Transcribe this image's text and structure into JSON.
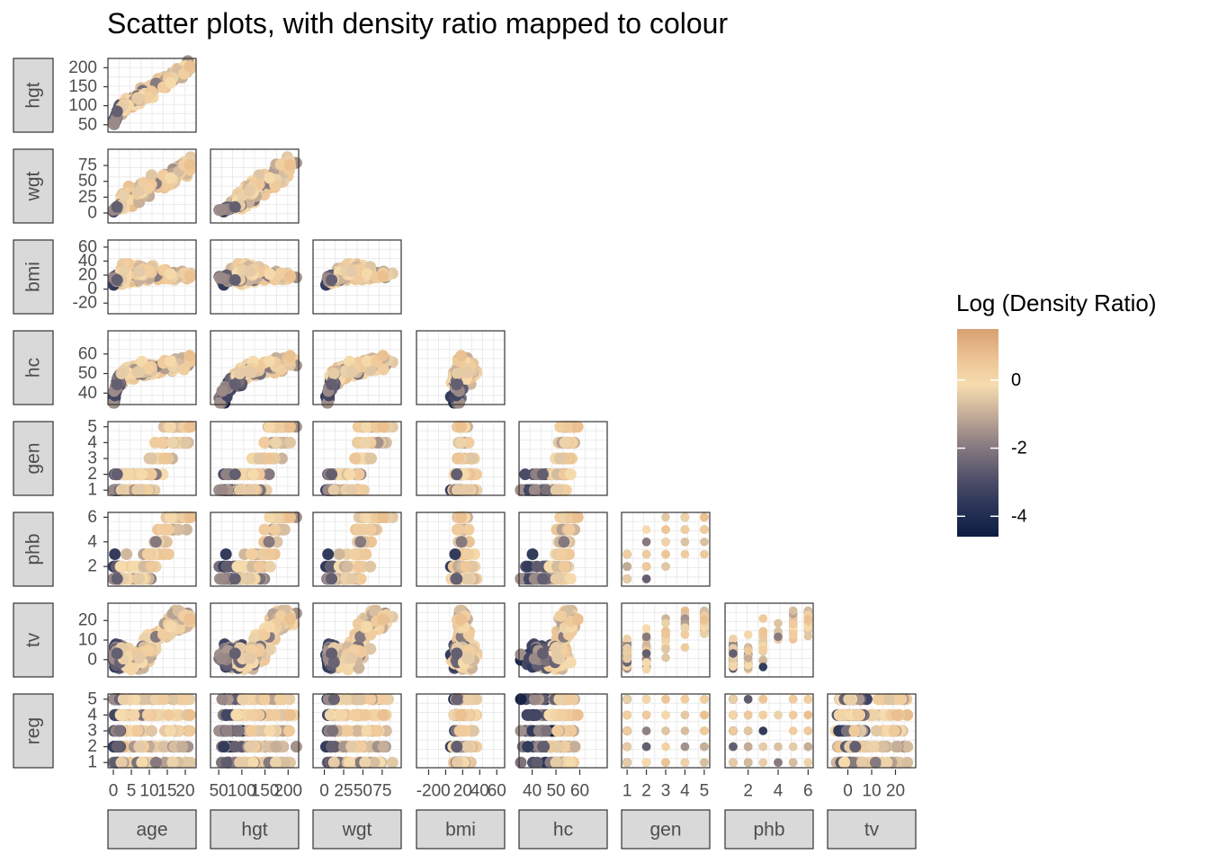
{
  "title": "Scatter plots, with density ratio mapped to colour",
  "legend": {
    "title": "Log (Density Ratio)",
    "breaks": [
      "0",
      "-2",
      "-4"
    ],
    "colors": [
      "#d9a071",
      "#f6dcae",
      "#8d7f82",
      "#283356",
      "#0d1c42"
    ]
  },
  "chart_data": {
    "type": "scatter",
    "layout": "lower-triangle pairs matrix",
    "variables": [
      "age",
      "hgt",
      "wgt",
      "bmi",
      "hc",
      "gen",
      "phb",
      "tv",
      "reg"
    ],
    "col_strips": [
      "age",
      "hgt",
      "wgt",
      "bmi",
      "hc",
      "gen",
      "phb",
      "tv"
    ],
    "row_strips": [
      "hgt",
      "wgt",
      "bmi",
      "hc",
      "gen",
      "phb",
      "tv",
      "reg"
    ],
    "axes": {
      "age": {
        "range": [
          -0.5,
          22
        ],
        "breaks": [
          0,
          5,
          10,
          15,
          20
        ],
        "labels": [
          "0",
          "5",
          "10",
          "15",
          "20"
        ]
      },
      "hgt": {
        "range": [
          40,
          215
        ],
        "breaks": [
          50,
          100,
          150,
          200
        ],
        "labels": [
          "50",
          "100",
          "150",
          "200"
        ]
      },
      "wgt": {
        "range": [
          -10,
          95
        ],
        "breaks": [
          0,
          25,
          50,
          75
        ],
        "labels": [
          "0",
          "25",
          "50",
          "75"
        ]
      },
      "bmi": {
        "range": [
          -30,
          65
        ],
        "breaks": [
          -20,
          0,
          20,
          40,
          60
        ],
        "labels": [
          "-20",
          "0",
          "20",
          "40",
          "60"
        ]
      },
      "hc": {
        "range": [
          36,
          70
        ],
        "breaks": [
          40,
          50,
          60
        ],
        "labels": [
          "40",
          "50",
          "60"
        ]
      },
      "gen": {
        "range": [
          0.9,
          5.1
        ],
        "breaks": [
          1,
          2,
          3,
          4,
          5
        ],
        "labels": [
          "1",
          "2",
          "3",
          "4",
          "5"
        ]
      },
      "phb": {
        "range": [
          0.7,
          6.1
        ],
        "breaks": [
          2,
          4,
          6
        ],
        "labels": [
          "2",
          "4",
          "6"
        ]
      },
      "tv": {
        "range": [
          -7,
          27
        ],
        "breaks": [
          0,
          10,
          20
        ],
        "labels": [
          "0",
          "10",
          "20"
        ]
      },
      "reg": {
        "range": [
          0.9,
          5.1
        ],
        "breaks": [
          1,
          2,
          3,
          4,
          5
        ],
        "labels": [
          "1",
          "2",
          "3",
          "4",
          "5"
        ]
      }
    },
    "color_scale": {
      "name": "Log (Density Ratio)",
      "domain": [
        -4.6,
        1.5
      ],
      "breaks": [
        -4,
        -2,
        0
      ]
    }
  }
}
